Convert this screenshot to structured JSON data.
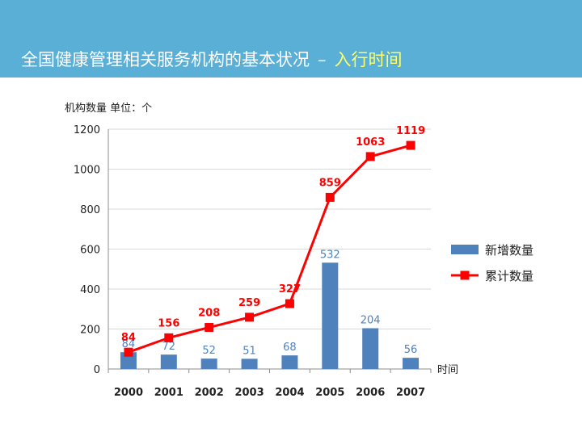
{
  "header": {
    "title_main": "全国健康管理相关服务机构的基本状况",
    "title_sep": "–",
    "title_accent": "入行时间",
    "accent_color": "#ffff66",
    "band_color": "#5aafd6"
  },
  "chart_data": {
    "type": "bar",
    "ylabel": "机构数量 单位：个",
    "xlabel": "时间",
    "categories": [
      "2000",
      "2001",
      "2002",
      "2003",
      "2004",
      "2005",
      "2006",
      "2007"
    ],
    "ylim": [
      0,
      1200
    ],
    "yticks": [
      0,
      200,
      400,
      600,
      800,
      1000,
      1200
    ],
    "grid": true,
    "legend_position": "right",
    "series": [
      {
        "name": "新增数量",
        "kind": "bar",
        "color": "#4f81bd",
        "values": [
          84,
          72,
          52,
          51,
          68,
          532,
          204,
          56
        ]
      },
      {
        "name": "累计数量",
        "kind": "line",
        "color": "#ff0000",
        "values": [
          84,
          156,
          208,
          259,
          327,
          859,
          1063,
          1119
        ]
      }
    ]
  }
}
